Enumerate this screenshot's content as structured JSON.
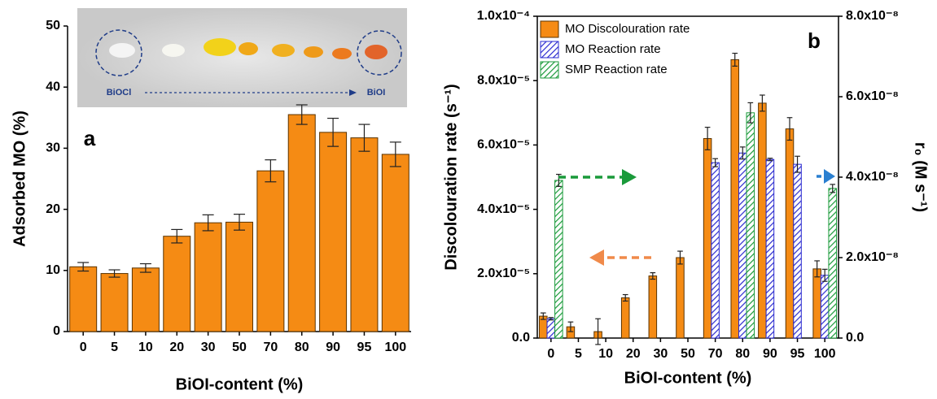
{
  "chart_data": [
    {
      "type": "bar",
      "panel_label": "a",
      "xlabel": "BiOI-content (%)",
      "ylabel": "Adsorbed MO (%)",
      "inset_labels": [
        "BiOCl",
        "BiOI"
      ],
      "categories": [
        "0",
        "5",
        "10",
        "20",
        "30",
        "50",
        "70",
        "80",
        "90",
        "95",
        "100"
      ],
      "values": [
        10.6,
        9.5,
        10.4,
        15.6,
        17.8,
        17.9,
        26.3,
        35.5,
        32.6,
        31.7,
        29.0
      ],
      "errors": [
        0.7,
        0.6,
        0.7,
        1.1,
        1.3,
        1.3,
        1.8,
        1.6,
        2.3,
        2.2,
        2.0
      ],
      "color": "#f58b14",
      "ylim": [
        0,
        50
      ],
      "yticks": [
        0,
        10,
        20,
        30,
        40,
        50
      ]
    },
    {
      "type": "bar",
      "panel_label": "b",
      "xlabel": "BiOI-content (%)",
      "ylabel": "Discolouration rate (s⁻¹)",
      "y2label": "r₀ (M s⁻¹)",
      "categories": [
        "0",
        "5",
        "10",
        "20",
        "30",
        "50",
        "70",
        "80",
        "90",
        "95",
        "100"
      ],
      "series": [
        {
          "name": "MO Discolouration rate",
          "color": "#f58b14",
          "values": [
            6.8e-06,
            3.5e-06,
            2e-06,
            1.25e-05,
            1.93e-05,
            2.5e-05,
            6.2e-05,
            8.65e-05,
            7.3e-05,
            6.5e-05,
            2.15e-05
          ],
          "errors": [
            1e-06,
            1.5e-06,
            4e-06,
            1e-06,
            1e-06,
            2e-06,
            3.5e-06,
            2e-06,
            2.5e-06,
            3.5e-06,
            2.5e-06
          ]
        },
        {
          "name": "MO Reaction rate",
          "color": "#2a2ad0",
          "hatch": true,
          "axis": "y2",
          "values": [
            4.8e-09,
            null,
            null,
            null,
            null,
            null,
            4.36e-08,
            4.6e-08,
            4.44e-08,
            4.32e-08,
            1.56e-08
          ],
          "errors": [
            3e-10,
            null,
            null,
            null,
            null,
            null,
            1e-09,
            1.5e-09,
            3e-10,
            2e-09,
            1.5e-09
          ]
        },
        {
          "name": "SMP Reaction rate",
          "color": "#1a9a3a",
          "hatch": true,
          "axis": "y2",
          "values": [
            3.92e-08,
            null,
            null,
            null,
            null,
            null,
            null,
            5.6e-08,
            null,
            null,
            3.72e-08
          ],
          "errors": [
            1.5e-09,
            null,
            null,
            null,
            null,
            null,
            null,
            2.5e-09,
            null,
            null,
            1e-09
          ]
        }
      ],
      "ylim": [
        0,
        0.0001
      ],
      "yticks": [
        {
          "value": 0,
          "label": "0.0"
        },
        {
          "value": 2e-05,
          "label": "2.0x10⁻⁵"
        },
        {
          "value": 4e-05,
          "label": "4.0x10⁻⁵"
        },
        {
          "value": 6e-05,
          "label": "6.0x10⁻⁵"
        },
        {
          "value": 8e-05,
          "label": "8.0x10⁻⁵"
        },
        {
          "value": 0.0001,
          "label": "1.0x10⁻⁴"
        }
      ],
      "y2lim": [
        0,
        8e-08
      ],
      "y2ticks": [
        {
          "value": 0,
          "label": "0.0"
        },
        {
          "value": 2e-08,
          "label": "2.0x10⁻⁸"
        },
        {
          "value": 4e-08,
          "label": "4.0x10⁻⁸"
        },
        {
          "value": 6e-08,
          "label": "6.0x10⁻⁸"
        },
        {
          "value": 8e-08,
          "label": "8.0x10⁻⁸"
        }
      ],
      "legend": "upper left"
    }
  ]
}
